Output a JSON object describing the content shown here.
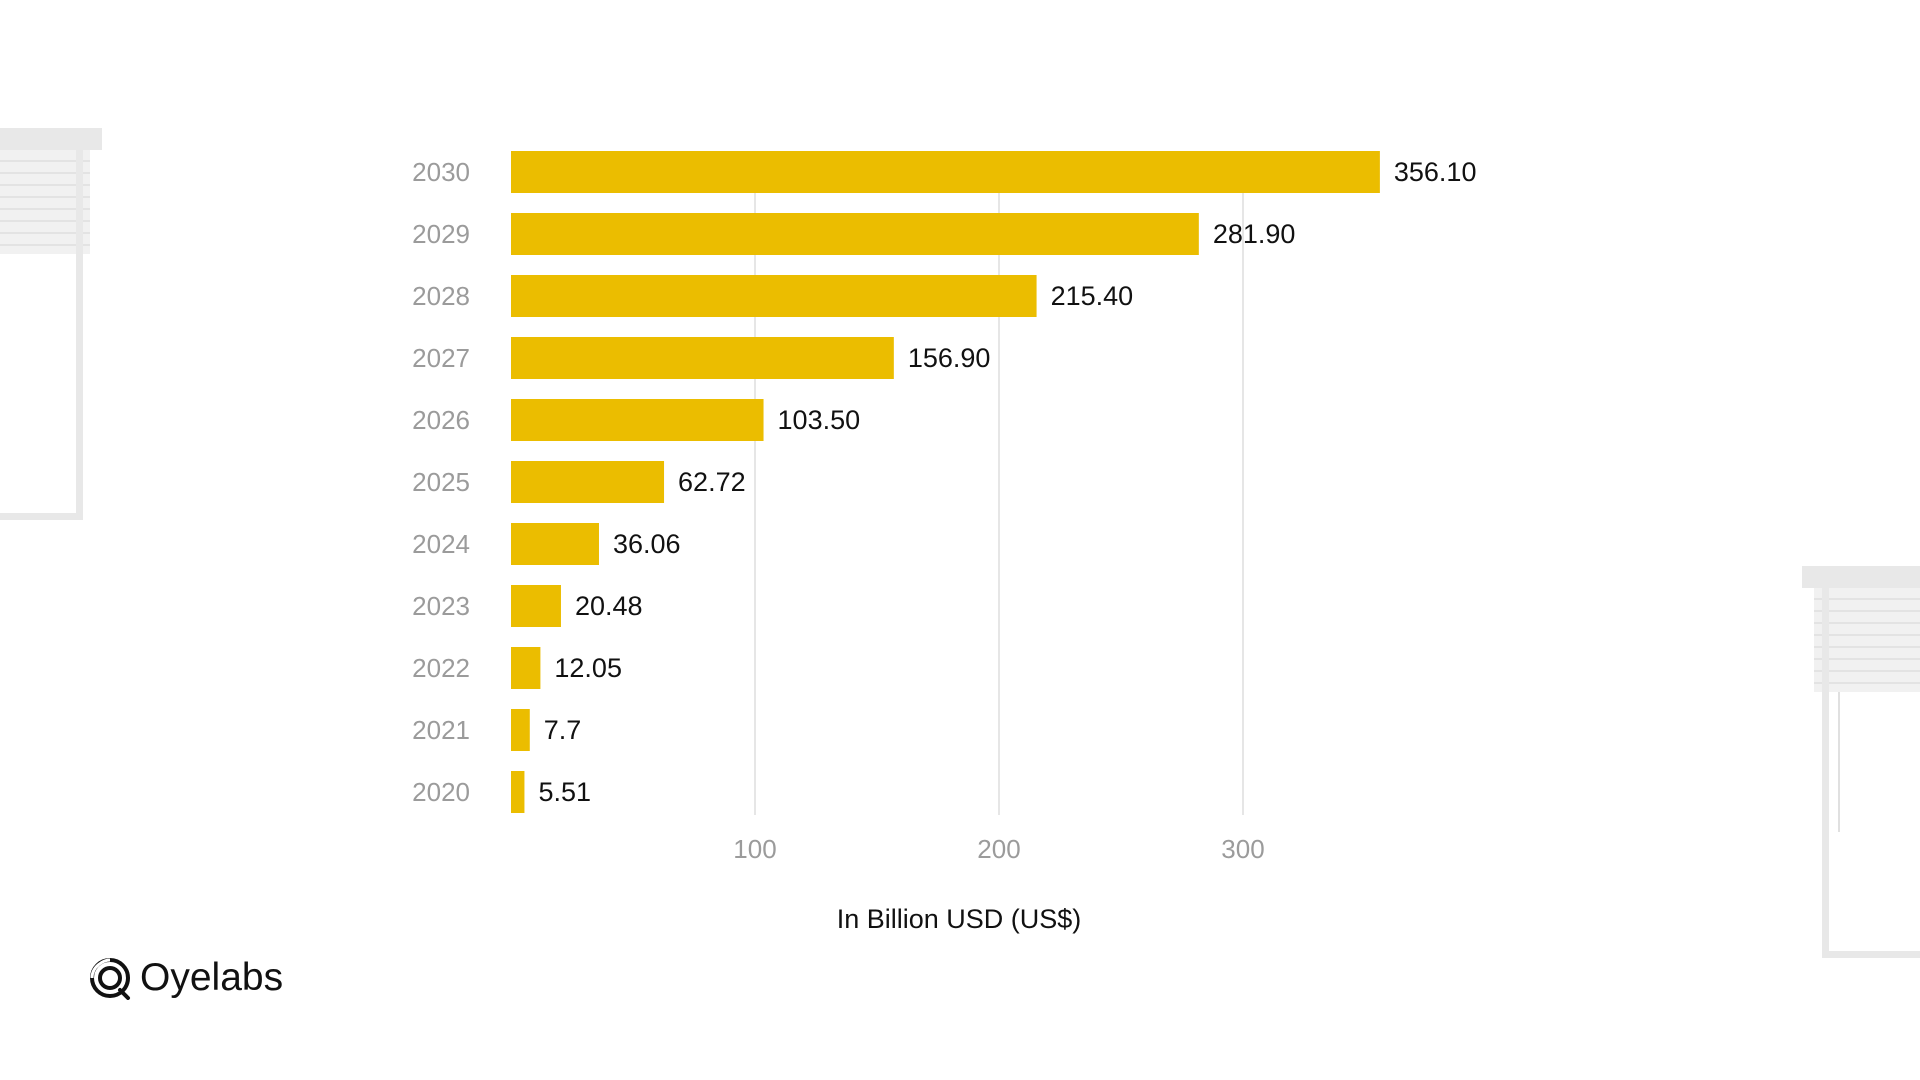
{
  "brand": {
    "name": "Oyelabs",
    "logo_icon": "oyelabs-swirl-icon"
  },
  "colors": {
    "bar": "#EBBD00",
    "category_label": "#9b9b9b",
    "value_label": "#111111",
    "tick_label": "#9b9b9b",
    "gridline": "#d9d9d9",
    "axis_title": "#111111"
  },
  "chart_data": {
    "type": "bar",
    "orientation": "horizontal",
    "categories": [
      "2030",
      "2029",
      "2028",
      "2027",
      "2026",
      "2025",
      "2024",
      "2023",
      "2022",
      "2021",
      "2020"
    ],
    "values": [
      356.1,
      281.9,
      215.4,
      156.9,
      103.5,
      62.72,
      36.06,
      20.48,
      12.05,
      7.7,
      5.51
    ],
    "value_labels": [
      "356.10",
      "281.90",
      "215.40",
      "156.90",
      "103.50",
      "62.72",
      "36.06",
      "20.48",
      "12.05",
      "7.7",
      "5.51"
    ],
    "xlabel": "In Billion USD (US$)",
    "ylabel": "",
    "xticks": [
      100,
      200,
      300
    ],
    "xtick_labels": [
      "100",
      "200",
      "300"
    ],
    "xlim": [
      0,
      370
    ],
    "grid": "vertical",
    "legend": "none"
  }
}
